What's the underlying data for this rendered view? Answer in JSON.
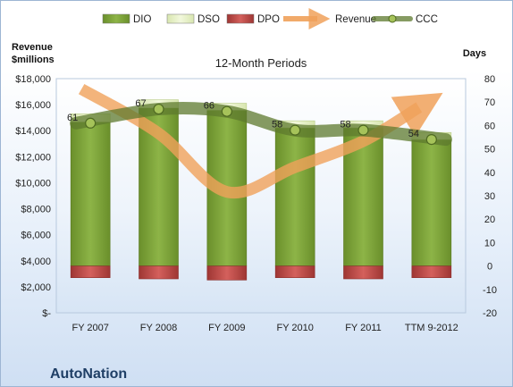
{
  "chart_data": {
    "type": "bar",
    "subtitle": "12-Month Periods",
    "company": "AutoNation",
    "left_axis_title": [
      "Revenue",
      "$millions"
    ],
    "right_axis_title": "Days",
    "categories": [
      "FY 2007",
      "FY 2008",
      "FY 2009",
      "FY 2010",
      "FY 2011",
      "TTM 9-2012"
    ],
    "left_axis": {
      "min": 0,
      "max": 18000,
      "step": 2000,
      "tick_labels": [
        "$-",
        "$2,000",
        "$4,000",
        "$6,000",
        "$8,000",
        "$10,000",
        "$12,000",
        "$14,000",
        "$16,000",
        "$18,000"
      ]
    },
    "right_axis": {
      "min": -20,
      "max": 80,
      "step": 10,
      "tick_labels": [
        "-20",
        "-10",
        "0",
        "10",
        "20",
        "30",
        "40",
        "50",
        "60",
        "70",
        "80"
      ]
    },
    "series": [
      {
        "name": "DIO",
        "axis": "right",
        "type": "stacked-bar",
        "color": "#7ea33a",
        "values": [
          61.5,
          67.5,
          66.5,
          59,
          59,
          54
        ]
      },
      {
        "name": "DSO",
        "axis": "right",
        "type": "stacked-bar",
        "color": "#e4efc4",
        "values": [
          3.5,
          3.5,
          3,
          3,
          3,
          3
        ]
      },
      {
        "name": "DPO",
        "axis": "right",
        "type": "negative-bar",
        "color": "#c0504d",
        "values": [
          -5,
          -5.5,
          -6,
          -5,
          -5.5,
          -5
        ]
      },
      {
        "name": "Revenue",
        "axis": "left",
        "type": "smooth-arrow-line",
        "color": "#f0a15a",
        "values": [
          17200,
          13800,
          9300,
          11200,
          13200,
          15800
        ]
      },
      {
        "name": "CCC",
        "axis": "right",
        "type": "smooth-line-markers",
        "color": "#5e7a2e",
        "values": [
          61,
          67,
          66,
          58,
          58,
          54
        ]
      }
    ],
    "ccc_labels": [
      "61",
      "67",
      "66",
      "58",
      "58",
      "54"
    ],
    "legend_position": "top",
    "grid": false
  }
}
